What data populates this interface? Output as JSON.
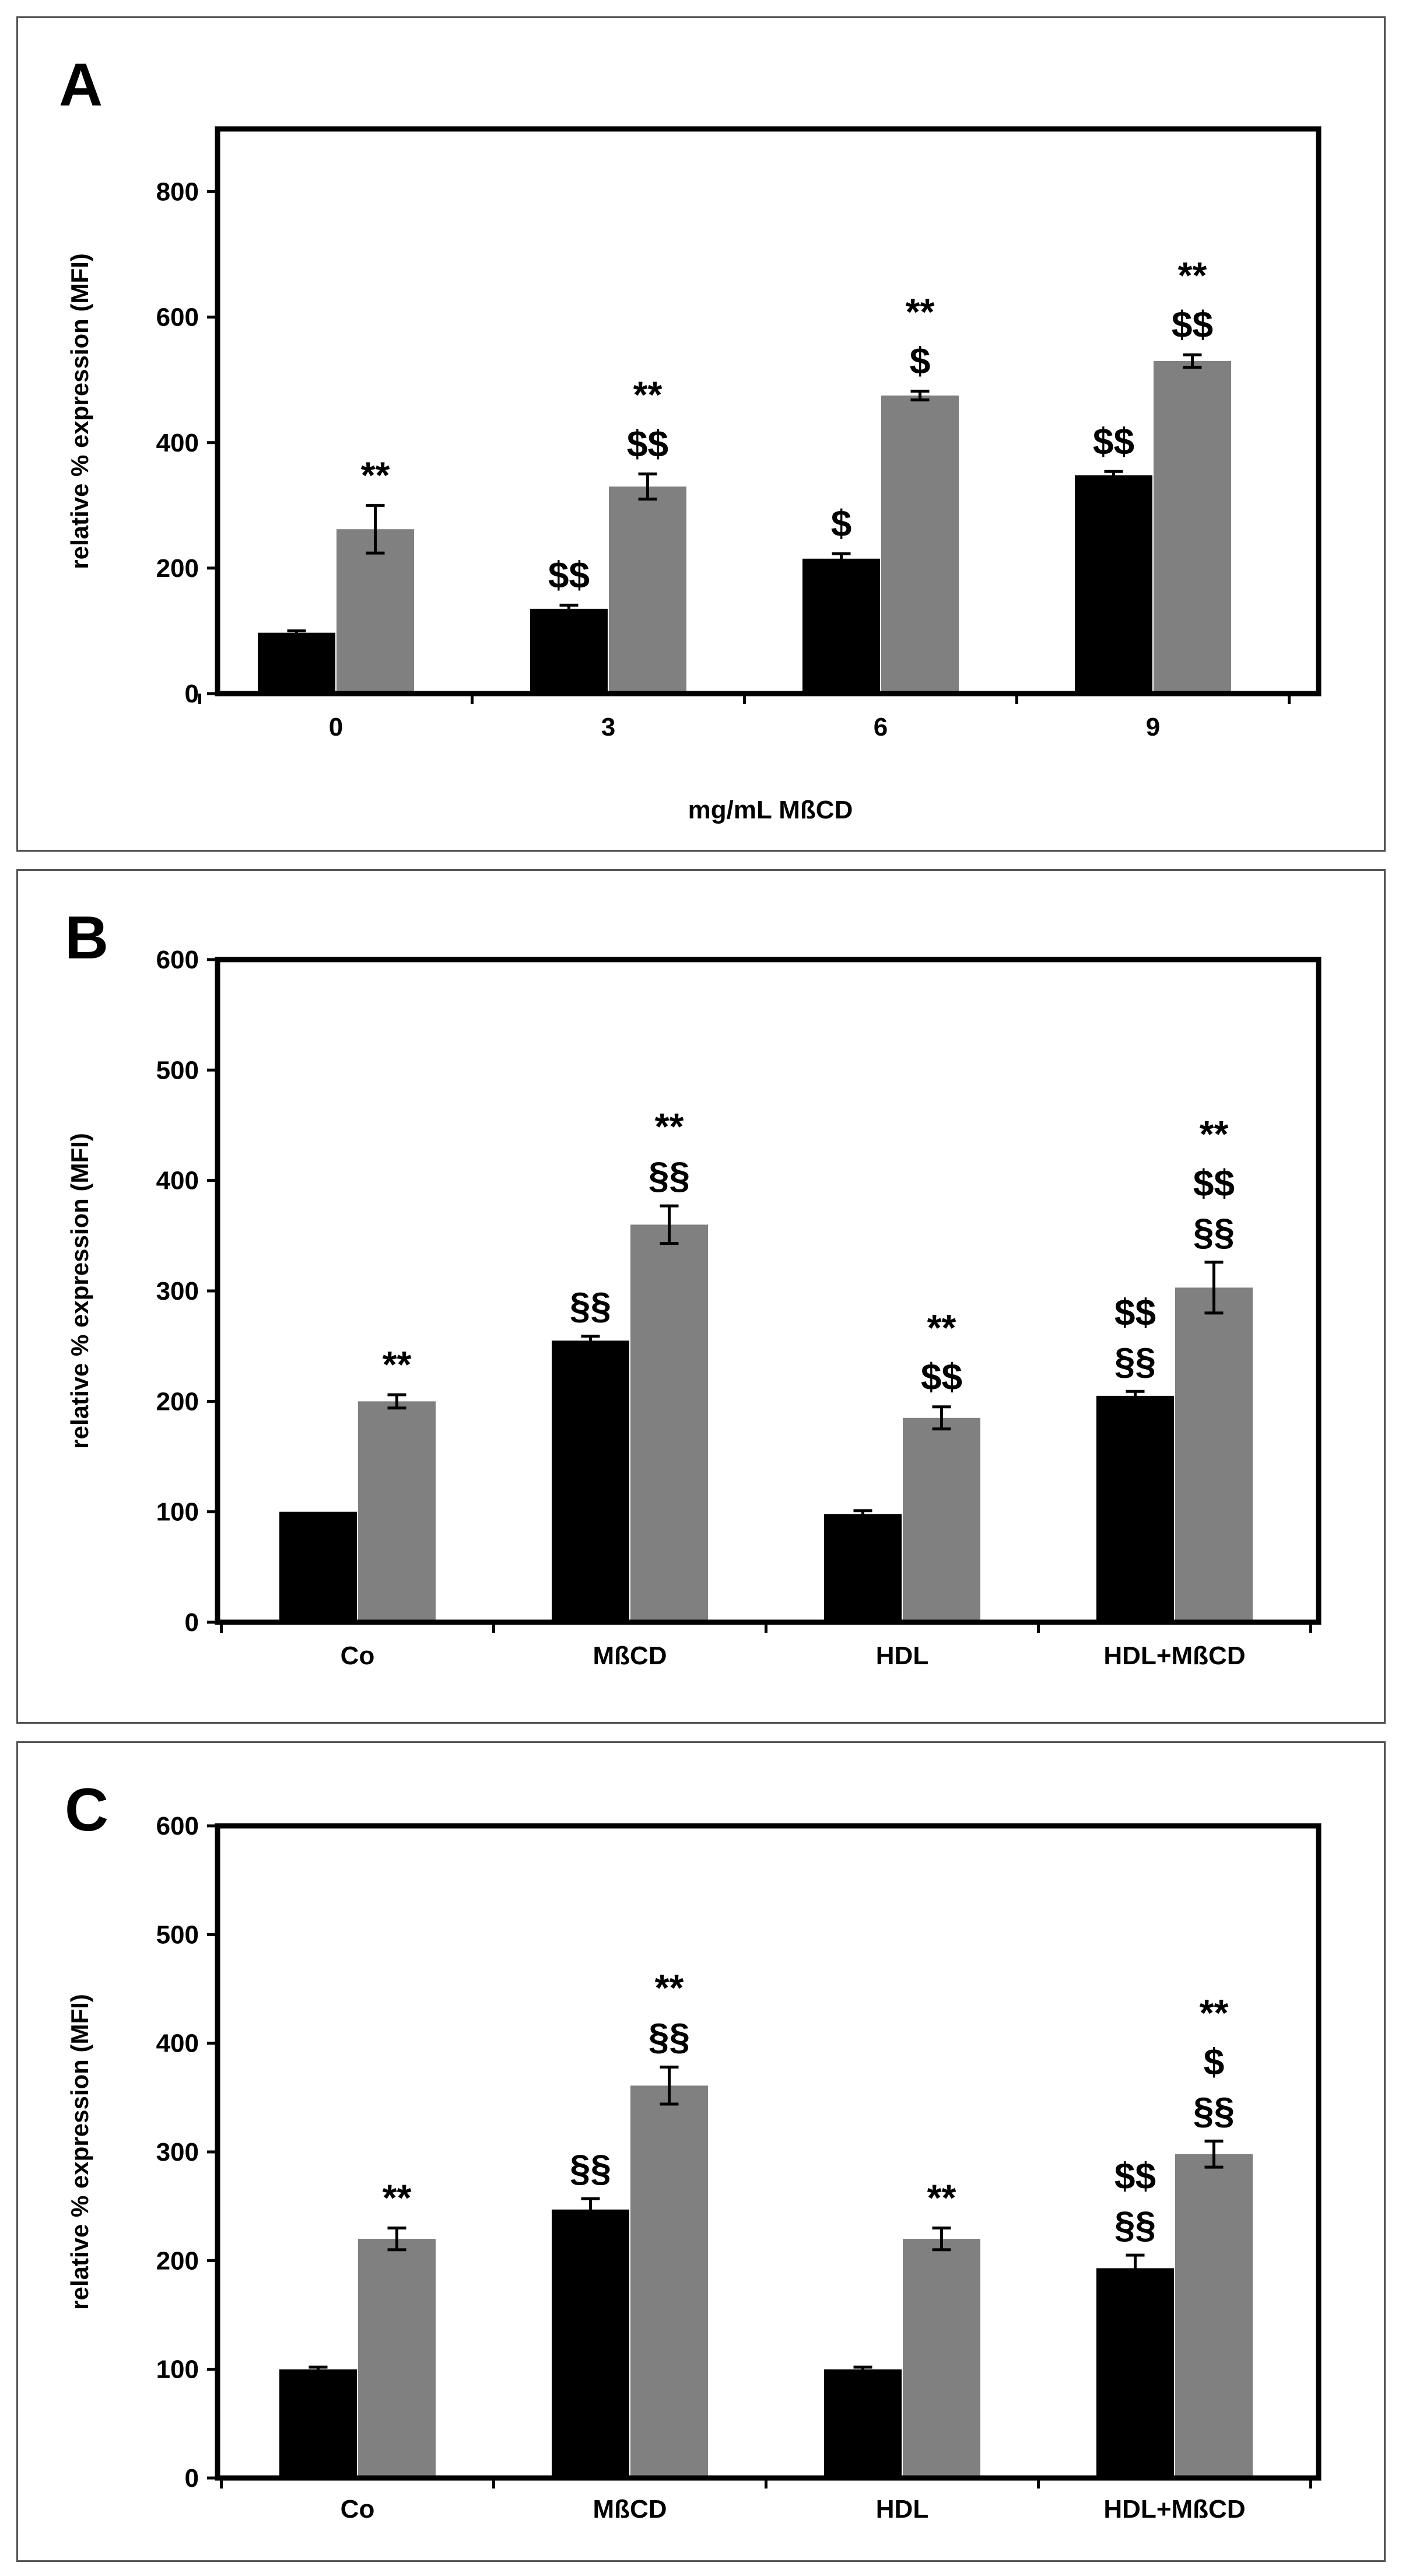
{
  "colors": {
    "series_a": "#000000",
    "series_b": "#808080",
    "axis": "#000000"
  },
  "chart_data": [
    {
      "panel": "A",
      "type": "bar",
      "title": "",
      "xlabel": "mg/mL MßCD",
      "ylabel": "relative % expression (MFI)",
      "ylim": [
        0,
        900
      ],
      "yticks": [
        0,
        200,
        400,
        600,
        800
      ],
      "grid": false,
      "categories": [
        "0",
        "3",
        "6",
        "9"
      ],
      "series": [
        {
          "name": "black",
          "values": [
            97,
            135,
            215,
            348
          ],
          "errors": [
            3,
            6,
            8,
            6
          ]
        },
        {
          "name": "gray",
          "values": [
            262,
            330,
            475,
            530
          ],
          "errors": [
            38,
            20,
            7,
            10
          ]
        }
      ],
      "annotations": [
        {
          "category": 0,
          "series": 1,
          "lines": [
            "**"
          ]
        },
        {
          "category": 1,
          "series": 0,
          "lines": [
            "$$"
          ]
        },
        {
          "category": 1,
          "series": 1,
          "lines": [
            "**",
            "$$"
          ]
        },
        {
          "category": 2,
          "series": 0,
          "lines": [
            "$"
          ]
        },
        {
          "category": 2,
          "series": 1,
          "lines": [
            "**",
            "$"
          ]
        },
        {
          "category": 3,
          "series": 0,
          "lines": [
            "$$"
          ]
        },
        {
          "category": 3,
          "series": 1,
          "lines": [
            "**",
            "$$"
          ]
        }
      ]
    },
    {
      "panel": "B",
      "type": "bar",
      "title": "",
      "xlabel": "",
      "ylabel": "relative % expression (MFI)",
      "ylim": [
        0,
        600
      ],
      "yticks": [
        0,
        100,
        200,
        300,
        400,
        500,
        600
      ],
      "grid": false,
      "categories": [
        "Co",
        "MßCD",
        "HDL",
        "HDL+MßCD"
      ],
      "series": [
        {
          "name": "black",
          "values": [
            100,
            255,
            98,
            205
          ],
          "errors": [
            0,
            4,
            3,
            4
          ]
        },
        {
          "name": "gray",
          "values": [
            200,
            360,
            185,
            303
          ],
          "errors": [
            6,
            17,
            10,
            23
          ]
        }
      ],
      "annotations": [
        {
          "category": 0,
          "series": 1,
          "lines": [
            "**"
          ]
        },
        {
          "category": 1,
          "series": 0,
          "lines": [
            "§§"
          ]
        },
        {
          "category": 1,
          "series": 1,
          "lines": [
            "**",
            "§§"
          ]
        },
        {
          "category": 2,
          "series": 1,
          "lines": [
            "**",
            "$$"
          ]
        },
        {
          "category": 3,
          "series": 0,
          "lines": [
            "$$",
            "§§"
          ]
        },
        {
          "category": 3,
          "series": 1,
          "lines": [
            "**",
            "$$",
            "§§"
          ]
        }
      ]
    },
    {
      "panel": "C",
      "type": "bar",
      "title": "",
      "xlabel": "",
      "ylabel": "relative % expression (MFI)",
      "ylim": [
        0,
        600
      ],
      "yticks": [
        0,
        100,
        200,
        300,
        400,
        500,
        600
      ],
      "grid": false,
      "categories": [
        "Co",
        "MßCD",
        "HDL",
        "HDL+MßCD"
      ],
      "series": [
        {
          "name": "black",
          "values": [
            100,
            247,
            100,
            193
          ],
          "errors": [
            2,
            10,
            2,
            12
          ]
        },
        {
          "name": "gray",
          "values": [
            220,
            361,
            220,
            298
          ],
          "errors": [
            10,
            17,
            10,
            12
          ]
        }
      ],
      "annotations": [
        {
          "category": 0,
          "series": 1,
          "lines": [
            "**"
          ]
        },
        {
          "category": 1,
          "series": 0,
          "lines": [
            "§§"
          ]
        },
        {
          "category": 1,
          "series": 1,
          "lines": [
            "**",
            "§§"
          ]
        },
        {
          "category": 2,
          "series": 1,
          "lines": [
            "**"
          ]
        },
        {
          "category": 3,
          "series": 0,
          "lines": [
            "$$",
            "§§"
          ]
        },
        {
          "category": 3,
          "series": 1,
          "lines": [
            "**",
            "$",
            "§§"
          ]
        }
      ]
    }
  ]
}
